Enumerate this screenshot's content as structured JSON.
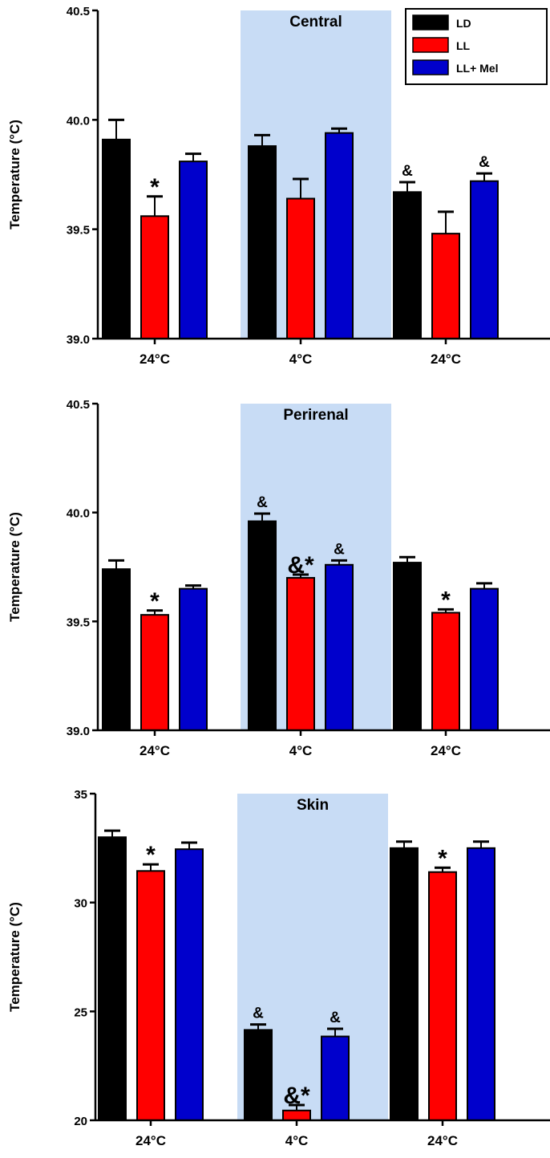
{
  "colors": {
    "LD": "#000000",
    "LL": "#ff0000",
    "LL+ Mel": "#0000cc",
    "shade": "#c8dcf5"
  },
  "legend": [
    "LD",
    "LL",
    "LL+ Mel"
  ],
  "chart_data": [
    {
      "type": "bar",
      "title": "Central",
      "ylabel": "Temperature (°C)",
      "ylim": [
        39.0,
        40.5
      ],
      "yticks": [
        "39.0",
        "39.5",
        "40.0",
        "40.5"
      ],
      "categories": [
        "24°C",
        "4°C",
        "24°C"
      ],
      "shaded_category": 1,
      "series": [
        {
          "name": "LD",
          "values": [
            39.91,
            39.88,
            39.67
          ],
          "errors": [
            0.09,
            0.05,
            0.045
          ]
        },
        {
          "name": "LL",
          "values": [
            39.56,
            39.64,
            39.48
          ],
          "errors": [
            0.09,
            0.09,
            0.1
          ]
        },
        {
          "name": "LL+ Mel",
          "values": [
            39.81,
            39.94,
            39.72
          ],
          "errors": [
            0.035,
            0.02,
            0.035
          ]
        }
      ],
      "annotations": [
        {
          "group": 0,
          "series": 1,
          "text": "*"
        },
        {
          "group": 2,
          "series": 0,
          "text": "&"
        },
        {
          "group": 2,
          "series": 2,
          "text": "&"
        }
      ],
      "legend_position": "top-right"
    },
    {
      "type": "bar",
      "title": "Perirenal",
      "ylabel": "Temperature (°C)",
      "ylim": [
        39.0,
        40.5
      ],
      "yticks": [
        "39.0",
        "39.5",
        "40.0",
        "40.5"
      ],
      "categories": [
        "24°C",
        "4°C",
        "24°C"
      ],
      "shaded_category": 1,
      "series": [
        {
          "name": "LD",
          "values": [
            39.74,
            39.96,
            39.77
          ],
          "errors": [
            0.04,
            0.035,
            0.025
          ]
        },
        {
          "name": "LL",
          "values": [
            39.53,
            39.7,
            39.54
          ],
          "errors": [
            0.02,
            0.015,
            0.015
          ]
        },
        {
          "name": "LL+ Mel",
          "values": [
            39.65,
            39.76,
            39.65
          ],
          "errors": [
            0.015,
            0.02,
            0.025
          ]
        }
      ],
      "annotations": [
        {
          "group": 0,
          "series": 1,
          "text": "*"
        },
        {
          "group": 1,
          "series": 0,
          "text": "&"
        },
        {
          "group": 1,
          "series": 1,
          "text": "&*"
        },
        {
          "group": 1,
          "series": 2,
          "text": "&"
        },
        {
          "group": 2,
          "series": 1,
          "text": "*"
        }
      ]
    },
    {
      "type": "bar",
      "title": "Skin",
      "ylabel": "Temperature (°C)",
      "ylim": [
        20,
        35
      ],
      "yticks": [
        "20",
        "25",
        "30",
        "35"
      ],
      "categories": [
        "24°C",
        "4°C",
        "24°C"
      ],
      "shaded_category": 1,
      "series": [
        {
          "name": "LD",
          "values": [
            33.0,
            24.15,
            32.5
          ],
          "errors": [
            0.3,
            0.25,
            0.3
          ]
        },
        {
          "name": "LL",
          "values": [
            31.45,
            20.45,
            31.4
          ],
          "errors": [
            0.3,
            0.25,
            0.2
          ]
        },
        {
          "name": "LL+ Mel",
          "values": [
            32.45,
            23.85,
            32.5
          ],
          "errors": [
            0.3,
            0.35,
            0.3
          ]
        }
      ],
      "annotations": [
        {
          "group": 0,
          "series": 1,
          "text": "*"
        },
        {
          "group": 1,
          "series": 0,
          "text": "&"
        },
        {
          "group": 1,
          "series": 1,
          "text": "&*"
        },
        {
          "group": 1,
          "series": 2,
          "text": "&"
        },
        {
          "group": 2,
          "series": 1,
          "text": "*"
        }
      ]
    }
  ]
}
